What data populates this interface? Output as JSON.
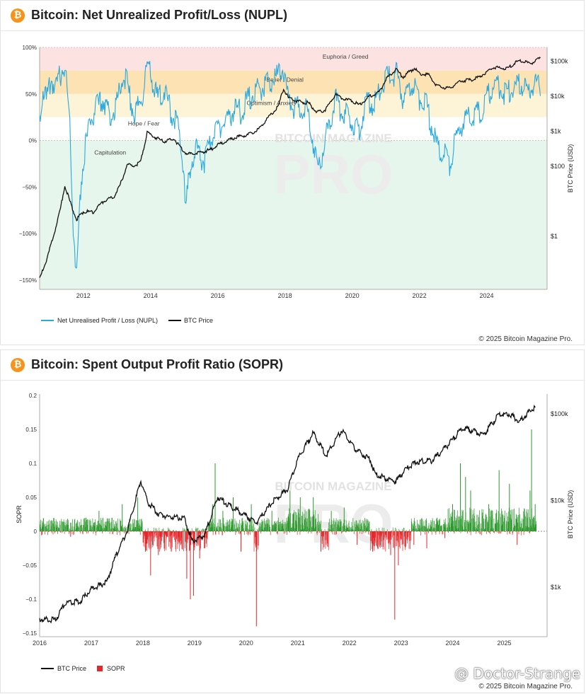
{
  "panels": {
    "nupl": {
      "title": "Bitcoin: Net Unrealized Profit/Loss (NUPL)",
      "credit": "© 2025 Bitcoin Magazine Pro."
    },
    "sopr": {
      "title": "Bitcoin: Spent Output Profit Ratio (SOPR)",
      "credit": "© 2025 Bitcoin Magazine Pro."
    }
  },
  "watermark": {
    "line1": "BITCOIN MAGAZINE",
    "line2": "PRO"
  },
  "user_watermark": "@ Doctor-Strange",
  "colors": {
    "nupl_line": "#29a9e0",
    "btc_price": "#111111",
    "sopr_pos": "#2e9a2e",
    "sopr_neg": "#e8262a",
    "bitcoin_orange": "#f7931a"
  },
  "chart_data": [
    {
      "type": "line",
      "title": "Bitcoin: Net Unrealized Profit/Loss (NUPL)",
      "xlabel": "",
      "ylabel_left": "",
      "ylabel_right": "BTC Price (USD)",
      "x_ticks": [
        "2012",
        "2014",
        "2016",
        "2018",
        "2020",
        "2022",
        "2024"
      ],
      "y_ticks_left": [
        "100%",
        "50%",
        "0%",
        "−50%",
        "−100%",
        "−150%"
      ],
      "y_ticks_right": [
        "$100k",
        "$10k",
        "$1k",
        "$100",
        "$1"
      ],
      "ylim_left": [
        -160,
        100
      ],
      "y_right_scale": "log",
      "zones": [
        {
          "label": "Euphoria / Greed",
          "from": 75,
          "to": 100,
          "color": "#fde2e2"
        },
        {
          "label": "Belief / Denial",
          "from": 50,
          "to": 75,
          "color": "#fde3b4"
        },
        {
          "label": "Optimism / Anxiety",
          "from": 25,
          "to": 50,
          "color": "#fdf3d6"
        },
        {
          "label": "Hope / Fear",
          "from": 0,
          "to": 25,
          "color": "#ffffff"
        },
        {
          "label": "Capitulation",
          "from": -160,
          "to": 0,
          "color": "#e6f6ec"
        }
      ],
      "legend": [
        "Net Unrealised Profit / Loss (NUPL)",
        "BTC Price"
      ],
      "legend_position": "bottom-left",
      "series": [
        {
          "name": "Net Unrealised Profit / Loss (NUPL)",
          "axis": "left",
          "points": [
            [
              2010.7,
              20
            ],
            [
              2010.8,
              60
            ],
            [
              2010.9,
              40
            ],
            [
              2011.05,
              65
            ],
            [
              2011.2,
              55
            ],
            [
              2011.35,
              75
            ],
            [
              2011.45,
              80
            ],
            [
              2011.6,
              20
            ],
            [
              2011.7,
              -90
            ],
            [
              2011.8,
              -150
            ],
            [
              2011.9,
              -60
            ],
            [
              2012.0,
              -20
            ],
            [
              2012.2,
              20
            ],
            [
              2012.4,
              35
            ],
            [
              2012.6,
              45
            ],
            [
              2012.8,
              25
            ],
            [
              2013.0,
              40
            ],
            [
              2013.2,
              75
            ],
            [
              2013.3,
              60
            ],
            [
              2013.5,
              30
            ],
            [
              2013.7,
              40
            ],
            [
              2013.9,
              78
            ],
            [
              2014.0,
              70
            ],
            [
              2014.2,
              45
            ],
            [
              2014.4,
              55
            ],
            [
              2014.6,
              30
            ],
            [
              2014.8,
              20
            ],
            [
              2015.0,
              -35
            ],
            [
              2015.05,
              -75
            ],
            [
              2015.2,
              -20
            ],
            [
              2015.4,
              -10
            ],
            [
              2015.6,
              -25
            ],
            [
              2015.8,
              0
            ],
            [
              2016.0,
              15
            ],
            [
              2016.3,
              20
            ],
            [
              2016.5,
              35
            ],
            [
              2016.7,
              30
            ],
            [
              2016.9,
              45
            ],
            [
              2017.2,
              55
            ],
            [
              2017.5,
              60
            ],
            [
              2017.8,
              70
            ],
            [
              2017.95,
              76
            ],
            [
              2018.1,
              45
            ],
            [
              2018.3,
              35
            ],
            [
              2018.5,
              35
            ],
            [
              2018.7,
              30
            ],
            [
              2018.9,
              -15
            ],
            [
              2019.0,
              -30
            ],
            [
              2019.2,
              0
            ],
            [
              2019.4,
              30
            ],
            [
              2019.5,
              45
            ],
            [
              2019.7,
              30
            ],
            [
              2019.9,
              25
            ],
            [
              2020.2,
              10
            ],
            [
              2020.4,
              40
            ],
            [
              2020.6,
              40
            ],
            [
              2020.8,
              50
            ],
            [
              2021.0,
              65
            ],
            [
              2021.2,
              72
            ],
            [
              2021.35,
              70
            ],
            [
              2021.5,
              45
            ],
            [
              2021.7,
              55
            ],
            [
              2021.85,
              60
            ],
            [
              2022.0,
              45
            ],
            [
              2022.2,
              40
            ],
            [
              2022.4,
              10
            ],
            [
              2022.5,
              -5
            ],
            [
              2022.7,
              -10
            ],
            [
              2022.9,
              -30
            ],
            [
              2023.0,
              -10
            ],
            [
              2023.2,
              15
            ],
            [
              2023.4,
              25
            ],
            [
              2023.6,
              25
            ],
            [
              2023.8,
              30
            ],
            [
              2024.0,
              45
            ],
            [
              2024.2,
              60
            ],
            [
              2024.4,
              55
            ],
            [
              2024.6,
              50
            ],
            [
              2024.8,
              55
            ],
            [
              2025.0,
              62
            ],
            [
              2025.2,
              50
            ],
            [
              2025.4,
              58
            ],
            [
              2025.6,
              57
            ]
          ]
        },
        {
          "name": "BTC Price",
          "axis": "right",
          "points": [
            [
              2010.7,
              0.06
            ],
            [
              2010.9,
              0.2
            ],
            [
              2011.1,
              0.9
            ],
            [
              2011.3,
              5
            ],
            [
              2011.45,
              28
            ],
            [
              2011.6,
              10
            ],
            [
              2011.8,
              3
            ],
            [
              2012.0,
              5
            ],
            [
              2012.3,
              5
            ],
            [
              2012.6,
              10
            ],
            [
              2012.9,
              13
            ],
            [
              2013.1,
              30
            ],
            [
              2013.3,
              110
            ],
            [
              2013.5,
              100
            ],
            [
              2013.7,
              130
            ],
            [
              2013.9,
              900
            ],
            [
              2014.1,
              700
            ],
            [
              2014.4,
              500
            ],
            [
              2014.7,
              600
            ],
            [
              2014.9,
              330
            ],
            [
              2015.1,
              220
            ],
            [
              2015.5,
              250
            ],
            [
              2015.8,
              300
            ],
            [
              2016.0,
              400
            ],
            [
              2016.5,
              650
            ],
            [
              2016.9,
              800
            ],
            [
              2017.2,
              1100
            ],
            [
              2017.5,
              2500
            ],
            [
              2017.8,
              5000
            ],
            [
              2017.96,
              17000
            ],
            [
              2018.1,
              9000
            ],
            [
              2018.4,
              7000
            ],
            [
              2018.7,
              6500
            ],
            [
              2018.95,
              3500
            ],
            [
              2019.2,
              4000
            ],
            [
              2019.5,
              11000
            ],
            [
              2019.8,
              8000
            ],
            [
              2020.0,
              7500
            ],
            [
              2020.2,
              5500
            ],
            [
              2020.5,
              9500
            ],
            [
              2020.8,
              13000
            ],
            [
              2021.0,
              30000
            ],
            [
              2021.3,
              60000
            ],
            [
              2021.5,
              35000
            ],
            [
              2021.85,
              64000
            ],
            [
              2022.0,
              45000
            ],
            [
              2022.3,
              40000
            ],
            [
              2022.5,
              20000
            ],
            [
              2022.9,
              16500
            ],
            [
              2023.1,
              23000
            ],
            [
              2023.3,
              28000
            ],
            [
              2023.6,
              29000
            ],
            [
              2023.9,
              42000
            ],
            [
              2024.2,
              68000
            ],
            [
              2024.6,
              60000
            ],
            [
              2024.9,
              97000
            ],
            [
              2025.1,
              100000
            ],
            [
              2025.3,
              85000
            ],
            [
              2025.5,
              108000
            ],
            [
              2025.6,
              118000
            ]
          ]
        }
      ]
    },
    {
      "type": "bar+line",
      "title": "Bitcoin: Spent Output Profit Ratio (SOPR)",
      "xlabel": "",
      "ylabel": "SOPR",
      "ylabel_right": "BTC Price (USD)",
      "x_ticks": [
        "2016",
        "2017",
        "2018",
        "2019",
        "2020",
        "2021",
        "2022",
        "2023",
        "2024",
        "2025"
      ],
      "y_ticks_left": [
        "0.2",
        "0.15",
        "0.1",
        "0.05",
        "0",
        "−0.05",
        "−0.1",
        "−0.15"
      ],
      "y_ticks_right": [
        "$100k",
        "$10k",
        "$1k"
      ],
      "ylim": [
        -0.15,
        0.2
      ],
      "y_right_scale": "log",
      "legend": [
        "BTC Price",
        "SOPR"
      ],
      "legend_position": "bottom-left",
      "series": [
        {
          "name": "BTC Price",
          "axis": "right",
          "points": [
            [
              2016.0,
              430
            ],
            [
              2016.3,
              420
            ],
            [
              2016.5,
              650
            ],
            [
              2016.8,
              700
            ],
            [
              2017.0,
              950
            ],
            [
              2017.3,
              1150
            ],
            [
              2017.5,
              2500
            ],
            [
              2017.7,
              4500
            ],
            [
              2017.96,
              17000
            ],
            [
              2018.1,
              9500
            ],
            [
              2018.3,
              7000
            ],
            [
              2018.5,
              6500
            ],
            [
              2018.8,
              6300
            ],
            [
              2018.95,
              3400
            ],
            [
              2019.2,
              4000
            ],
            [
              2019.45,
              11000
            ],
            [
              2019.7,
              8500
            ],
            [
              2019.9,
              7300
            ],
            [
              2020.2,
              5500
            ],
            [
              2020.5,
              9500
            ],
            [
              2020.8,
              13500
            ],
            [
              2021.0,
              30000
            ],
            [
              2021.3,
              60000
            ],
            [
              2021.55,
              33000
            ],
            [
              2021.85,
              65000
            ],
            [
              2022.1,
              40000
            ],
            [
              2022.4,
              30000
            ],
            [
              2022.5,
              20000
            ],
            [
              2022.9,
              16500
            ],
            [
              2023.1,
              23000
            ],
            [
              2023.3,
              28000
            ],
            [
              2023.6,
              29000
            ],
            [
              2023.9,
              43000
            ],
            [
              2024.2,
              70000
            ],
            [
              2024.6,
              58000
            ],
            [
              2024.9,
              98000
            ],
            [
              2025.1,
              100000
            ],
            [
              2025.3,
              82000
            ],
            [
              2025.5,
              108000
            ],
            [
              2025.6,
              118000
            ]
          ]
        },
        {
          "name": "SOPR",
          "axis": "left",
          "spikes": [
            [
              2016.05,
              -0.005
            ],
            [
              2016.3,
              0.01
            ],
            [
              2016.6,
              -0.008
            ],
            [
              2016.9,
              0.02
            ],
            [
              2017.15,
              0.03
            ],
            [
              2017.4,
              0.02
            ],
            [
              2017.6,
              0.04
            ],
            [
              2017.9,
              0.05
            ],
            [
              2018.05,
              -0.03
            ],
            [
              2018.15,
              -0.065
            ],
            [
              2018.3,
              -0.035
            ],
            [
              2018.55,
              -0.03
            ],
            [
              2018.85,
              -0.07
            ],
            [
              2018.92,
              -0.1
            ],
            [
              2018.98,
              -0.095
            ],
            [
              2019.1,
              -0.04
            ],
            [
              2019.35,
              0.04
            ],
            [
              2019.4,
              0.1
            ],
            [
              2019.55,
              0.03
            ],
            [
              2019.75,
              0.05
            ],
            [
              2019.9,
              -0.03
            ],
            [
              2020.1,
              0.04
            ],
            [
              2020.2,
              -0.14
            ],
            [
              2020.5,
              0.03
            ],
            [
              2020.85,
              0.06
            ],
            [
              2021.05,
              0.05
            ],
            [
              2021.3,
              0.05
            ],
            [
              2021.45,
              -0.03
            ],
            [
              2021.65,
              0.03
            ],
            [
              2021.9,
              0.035
            ],
            [
              2022.15,
              -0.02
            ],
            [
              2022.45,
              -0.03
            ],
            [
              2022.8,
              -0.035
            ],
            [
              2022.88,
              -0.13
            ],
            [
              2022.95,
              -0.05
            ],
            [
              2023.25,
              -0.02
            ],
            [
              2023.5,
              -0.025
            ],
            [
              2023.7,
              0.02
            ],
            [
              2023.85,
              -0.01
            ],
            [
              2024.0,
              0.04
            ],
            [
              2024.15,
              0.1
            ],
            [
              2024.25,
              0.08
            ],
            [
              2024.35,
              0.06
            ],
            [
              2024.7,
              0.04
            ],
            [
              2024.9,
              0.09
            ],
            [
              2025.1,
              0.07
            ],
            [
              2025.25,
              -0.02
            ],
            [
              2025.5,
              0.06
            ],
            [
              2025.53,
              0.15
            ],
            [
              2025.6,
              0.04
            ]
          ]
        }
      ]
    }
  ]
}
